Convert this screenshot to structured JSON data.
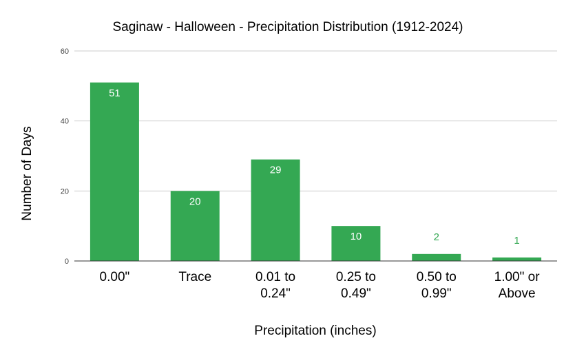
{
  "chart_data": {
    "type": "bar",
    "title": "Saginaw - Halloween - Precipitation Distribution (1912-2024)",
    "xlabel": "Precipitation (inches)",
    "ylabel": "Number of Days",
    "categories": [
      [
        "0.00\""
      ],
      [
        "Trace"
      ],
      [
        "0.01 to",
        "0.24\""
      ],
      [
        "0.25 to",
        "0.49\""
      ],
      [
        "0.50 to",
        "0.99\""
      ],
      [
        "1.00\" or",
        "Above"
      ]
    ],
    "values": [
      51,
      20,
      29,
      10,
      2,
      1
    ],
    "data_labels": [
      "51",
      "20",
      "29",
      "10",
      "2",
      "1"
    ],
    "yticks": [
      0,
      20,
      40,
      60
    ],
    "ylim": [
      0,
      60
    ],
    "grid": true,
    "legend": "none",
    "colors": {
      "bar": "#34a853",
      "label_inside": "#ffffff",
      "label_outside": "#34a853",
      "grid": "#cccccc",
      "axis": "#333333",
      "text": "#000000",
      "tick_text": "#444444"
    }
  }
}
